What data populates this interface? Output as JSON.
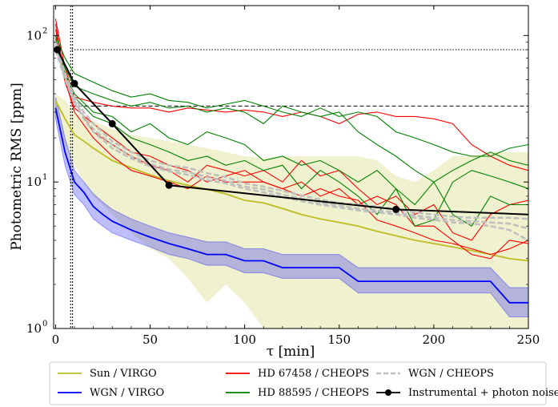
{
  "chart_data": {
    "type": "line",
    "title": "",
    "xlabel": "τ [min]",
    "ylabel": "Photometric RMS [ppm]",
    "xlim": [
      -1,
      250
    ],
    "ylim": [
      1,
      160
    ],
    "yscale": "log",
    "x_ticks": [
      0,
      50,
      100,
      150,
      200,
      250
    ],
    "x_tick_labels": [
      "0",
      "50",
      "100",
      "150",
      "200",
      "250"
    ],
    "y_ticks": [
      1,
      10,
      100
    ],
    "y_tick_labels": [
      "10",
      "10",
      "10"
    ],
    "y_tick_exponents": [
      "0",
      "1",
      "2"
    ],
    "vertical_lines": [
      8,
      9
    ],
    "horizontal_lines": [
      {
        "y": 80,
        "style": "dotted"
      },
      {
        "y": 33,
        "style": "dashed"
      }
    ],
    "legend_position": "bottom (below plot)",
    "series": [
      {
        "name": "Sun / VIRGO",
        "color": "#bcbd22",
        "x": [
          0,
          5,
          10,
          15,
          20,
          30,
          40,
          50,
          60,
          70,
          80,
          90,
          100,
          110,
          120,
          130,
          140,
          150,
          160,
          170,
          180,
          190,
          200,
          210,
          220,
          230,
          240,
          250
        ],
        "y": [
          36,
          27,
          21,
          19,
          17,
          14,
          12.5,
          11.2,
          10.2,
          9.5,
          8.9,
          8.3,
          7.5,
          7.2,
          6.6,
          6.0,
          5.6,
          5.3,
          5.0,
          4.6,
          4.3,
          4.0,
          3.8,
          3.6,
          3.4,
          3.2,
          3.0,
          2.9
        ],
        "band_upper": [
          40,
          36,
          30,
          28,
          26,
          23,
          21,
          20,
          19,
          18,
          17,
          16,
          15,
          14.5,
          15,
          15,
          15,
          15,
          15,
          14,
          11,
          10,
          12,
          15,
          15,
          16,
          16,
          16
        ],
        "band_lower": [
          28,
          18,
          13,
          10,
          8,
          6,
          4.5,
          3.5,
          3.0,
          2.2,
          1.5,
          2.0,
          1.5,
          1.0,
          1.0,
          1.0,
          1.0,
          1.0,
          1.0,
          1.0,
          1.0,
          1.0,
          1.0,
          1.0,
          1.0,
          1.0,
          1.0,
          1.0
        ]
      },
      {
        "name": "WGN / VIRGO",
        "color": "#0000ff",
        "x": [
          0,
          5,
          10,
          15,
          20,
          25,
          30,
          40,
          50,
          60,
          70,
          80,
          90,
          100,
          110,
          120,
          130,
          140,
          150,
          160,
          170,
          180,
          190,
          200,
          210,
          220,
          230,
          240,
          250
        ],
        "y": [
          32,
          16,
          10,
          8.5,
          6.8,
          6.0,
          5.4,
          4.7,
          4.2,
          3.8,
          3.5,
          3.2,
          3.2,
          2.9,
          2.9,
          2.6,
          2.6,
          2.6,
          2.6,
          2.1,
          2.1,
          2.1,
          2.1,
          2.1,
          2.1,
          2.1,
          2.1,
          1.5,
          1.5
        ],
        "band_upper": [
          38,
          20,
          12,
          10,
          8.3,
          7.3,
          6.5,
          5.6,
          5.0,
          4.5,
          4.2,
          3.9,
          3.9,
          3.5,
          3.5,
          3.2,
          3.2,
          3.2,
          3.2,
          2.6,
          2.6,
          2.6,
          2.6,
          2.6,
          2.6,
          2.6,
          2.6,
          1.9,
          1.9
        ],
        "band_lower": [
          27,
          13,
          8.2,
          7.0,
          5.6,
          5.0,
          4.5,
          4.0,
          3.6,
          3.2,
          3.0,
          2.7,
          2.7,
          2.4,
          2.4,
          2.2,
          2.2,
          2.2,
          2.2,
          1.75,
          1.75,
          1.75,
          1.75,
          1.75,
          1.75,
          1.75,
          1.75,
          1.2,
          1.2
        ]
      },
      {
        "name": "HD 67458 / CHEOPS",
        "color": "#ff0000",
        "lines": [
          {
            "x": [
              0,
              5,
              10,
              20,
              30,
              40,
              50,
              60,
              70,
              80,
              90,
              100,
              110,
              120,
              130,
              140,
              150,
              160,
              170,
              180,
              190,
              200,
              210,
              220,
              230,
              240,
              250
            ],
            "y": [
              130,
              60,
              38,
              35,
              33,
              32,
              32,
              30,
              32,
              31,
              30,
              31,
              30,
              28,
              30,
              28,
              25,
              29,
              30,
              28,
              28,
              27,
              25,
              18,
              15,
              13,
              12
            ]
          },
          {
            "x": [
              0,
              5,
              10,
              20,
              30,
              40,
              50,
              60,
              70,
              80,
              90,
              100,
              110,
              120,
              130,
              140,
              150,
              160,
              170,
              180,
              190,
              200,
              210,
              220,
              230,
              240,
              250
            ],
            "y": [
              110,
              55,
              35,
              22,
              18,
              15,
              13,
              12,
              10,
              13,
              12,
              11,
              12,
              10,
              14,
              11,
              12,
              9,
              7,
              8,
              6,
              7,
              4.5,
              4,
              6,
              7,
              7.5
            ]
          },
          {
            "x": [
              0,
              5,
              10,
              20,
              30,
              40,
              50,
              60,
              70,
              80,
              90,
              100,
              110,
              120,
              130,
              140,
              150,
              160,
              170,
              180,
              190,
              200,
              210,
              220,
              230,
              240,
              250
            ],
            "y": [
              120,
              50,
              30,
              20,
              15,
              12,
              11,
              10,
              9,
              11,
              10,
              10,
              10,
              9,
              8,
              9,
              8,
              7.5,
              5.5,
              5,
              4.5,
              4,
              3.8,
              3.5,
              3.2,
              3.5,
              4
            ]
          },
          {
            "x": [
              0,
              5,
              10,
              20,
              30,
              40,
              50,
              60,
              70,
              80,
              90,
              100,
              110,
              120,
              130,
              140,
              150,
              160,
              170,
              180,
              190,
              200,
              210,
              220,
              230,
              240,
              250
            ],
            "y": [
              100,
              48,
              32,
              25,
              20,
              16,
              15,
              13,
              12,
              10,
              11,
              12,
              10,
              9,
              10,
              8,
              9,
              7,
              8,
              7,
              5,
              5,
              4,
              3.2,
              3,
              4,
              3.8
            ]
          }
        ]
      },
      {
        "name": "HD 88595 / CHEOPS",
        "color": "#008000",
        "lines": [
          {
            "x": [
              0,
              5,
              10,
              20,
              30,
              40,
              50,
              60,
              70,
              80,
              90,
              100,
              110,
              120,
              130,
              140,
              150,
              160,
              170,
              180,
              190,
              200,
              210,
              220,
              230,
              240,
              250
            ],
            "y": [
              100,
              70,
              55,
              48,
              42,
              38,
              40,
              36,
              35,
              32,
              34,
              36,
              33,
              30,
              28,
              32,
              28,
              30,
              28,
              22,
              20,
              18,
              16,
              15,
              15,
              17,
              18
            ]
          },
          {
            "x": [
              0,
              5,
              10,
              20,
              30,
              40,
              50,
              60,
              70,
              80,
              90,
              100,
              110,
              120,
              130,
              140,
              150,
              160,
              170,
              180,
              190,
              200,
              210,
              220,
              230,
              240,
              250
            ],
            "y": [
              90,
              60,
              45,
              40,
              36,
              33,
              35,
              32,
              33,
              30,
              32,
              30,
              25,
              33,
              30,
              28,
              30,
              22,
              18,
              15,
              12,
              10,
              12,
              14,
              16,
              14,
              13
            ]
          },
          {
            "x": [
              0,
              5,
              10,
              20,
              30,
              40,
              50,
              60,
              70,
              80,
              90,
              100,
              110,
              120,
              130,
              140,
              150,
              160,
              170,
              180,
              190,
              200,
              210,
              220,
              230,
              240,
              250
            ],
            "y": [
              95,
              55,
              40,
              30,
              28,
              22,
              25,
              20,
              18,
              22,
              20,
              18,
              14,
              15,
              13,
              14,
              12,
              10,
              12,
              9,
              5,
              5.5,
              10,
              12,
              11,
              10,
              9
            ]
          },
          {
            "x": [
              0,
              5,
              10,
              20,
              30,
              40,
              50,
              60,
              70,
              80,
              90,
              100,
              110,
              120,
              130,
              140,
              150,
              160,
              170,
              180,
              190,
              200,
              210,
              220,
              230,
              240,
              250
            ],
            "y": [
              85,
              50,
              38,
              28,
              25,
              20,
              18,
              16,
              14,
              15,
              13,
              14,
              12,
              13,
              9,
              12,
              10,
              8,
              6,
              9,
              7,
              10,
              6,
              5,
              8,
              7,
              7
            ]
          }
        ]
      },
      {
        "name": "WGN / CHEOPS",
        "color": "#bfbfbf",
        "style": "dashed",
        "lines": [
          {
            "x": [
              0,
              5,
              10,
              15,
              20,
              30,
              40,
              50,
              60,
              70,
              80,
              90,
              100,
              110,
              120,
              130,
              140,
              150,
              160,
              170,
              180,
              190,
              200,
              210,
              220,
              230,
              240,
              250
            ],
            "y": [
              90,
              55,
              38,
              30,
              25,
              19,
              16,
              14,
              13,
              12.5,
              11.5,
              10.8,
              9.8,
              9.3,
              8.7,
              8.1,
              7.6,
              7.2,
              7.0,
              6.8,
              6.5,
              6.2,
              6.0,
              5.8,
              5.7,
              5.7,
              5.7,
              5.6
            ]
          },
          {
            "x": [
              0,
              5,
              10,
              15,
              20,
              30,
              40,
              50,
              60,
              70,
              80,
              90,
              100,
              110,
              120,
              130,
              140,
              150,
              160,
              170,
              180,
              190,
              200,
              210,
              220,
              230,
              240,
              250
            ],
            "y": [
              85,
              52,
              36,
              28,
              23,
              18,
              15,
              13.3,
              12.2,
              11.7,
              10.8,
              10.2,
              9.3,
              8.9,
              8.2,
              7.7,
              7.2,
              6.9,
              6.6,
              6.4,
              6.2,
              5.9,
              5.7,
              5.5,
              5.4,
              5.3,
              5.2,
              4.8
            ]
          },
          {
            "x": [
              0,
              5,
              10,
              15,
              20,
              30,
              40,
              50,
              60,
              70,
              80,
              90,
              100,
              110,
              120,
              130,
              140,
              150,
              160,
              170,
              180,
              190,
              200,
              210,
              220,
              230,
              240,
              250
            ],
            "y": [
              80,
              50,
              35,
              27,
              22,
              17,
              14.5,
              12.8,
              11.8,
              11.2,
              10.3,
              9.8,
              9.0,
              8.5,
              7.9,
              7.4,
              7.0,
              6.7,
              6.4,
              6.2,
              6.0,
              5.7,
              5.5,
              5.3,
              5.2,
              5.0,
              4.7,
              4.0
            ]
          }
        ]
      },
      {
        "name": "Instrumental + photon noise / ETC",
        "color": "#000000",
        "marker": "circle",
        "x": [
          1,
          10,
          30,
          60,
          180,
          250
        ],
        "y": [
          80,
          47,
          25,
          9.5,
          6.5,
          6
        ]
      }
    ]
  }
}
